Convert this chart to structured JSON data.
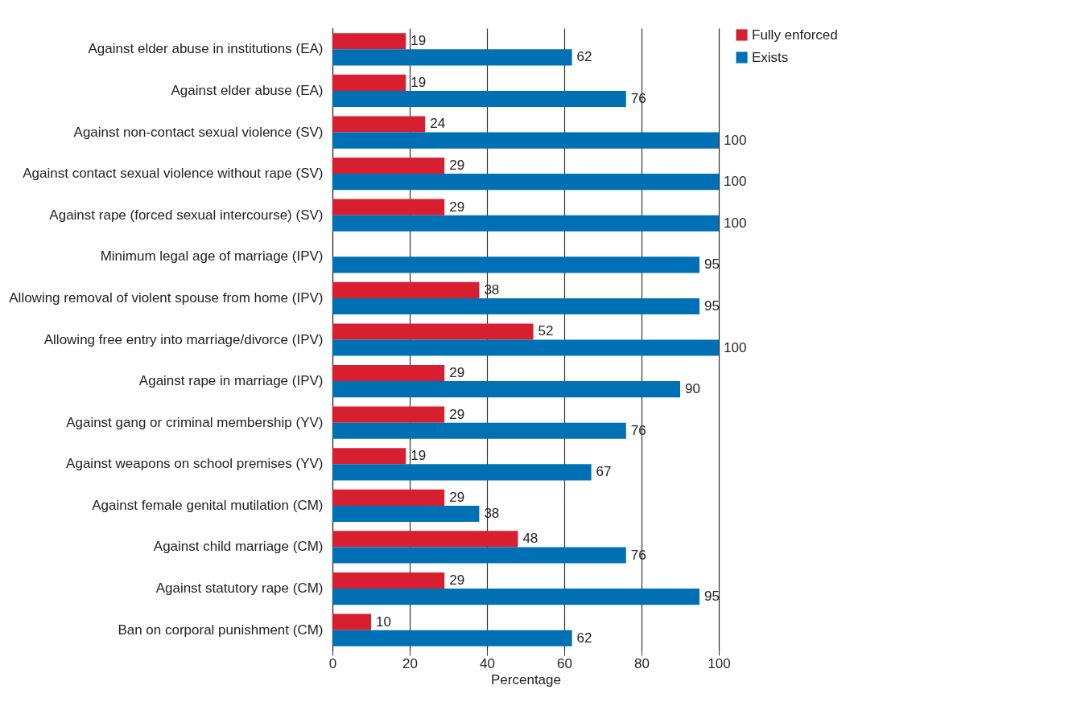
{
  "chart_data": {
    "type": "bar",
    "orientation": "horizontal",
    "xlabel": "Percentage",
    "categories": [
      "Against elder abuse in institutions (EA)",
      "Against elder abuse (EA)",
      "Against non-contact sexual violence (SV)",
      "Against contact sexual violence without rape (SV)",
      "Against rape (forced sexual intercourse) (SV)",
      "Minimum legal age of marriage (IPV)",
      "Allowing removal of violent spouse from home (IPV)",
      "Allowing free entry into marriage/divorce (IPV)",
      "Against rape in marriage (IPV)",
      "Against gang or criminal membership (YV)",
      "Against weapons on school premises (YV)",
      "Against female genital mutilation (CM)",
      "Against child marriage (CM)",
      "Against statutory rape (CM)",
      "Ban on corporal punishment (CM)"
    ],
    "series": [
      {
        "name": "Fully enforced",
        "color": "#d71f2f",
        "values": [
          19,
          19,
          24,
          29,
          29,
          null,
          38,
          52,
          29,
          29,
          19,
          29,
          48,
          29,
          10
        ]
      },
      {
        "name": "Exists",
        "color": "#0070b4",
        "values": [
          62,
          76,
          100,
          100,
          100,
          95,
          95,
          100,
          90,
          76,
          67,
          38,
          76,
          95,
          62
        ]
      }
    ],
    "xlim": [
      0,
      100
    ],
    "xticks": [
      0,
      20,
      40,
      60,
      80,
      100
    ],
    "grid": "x",
    "legend": "right",
    "data_labels": true
  }
}
